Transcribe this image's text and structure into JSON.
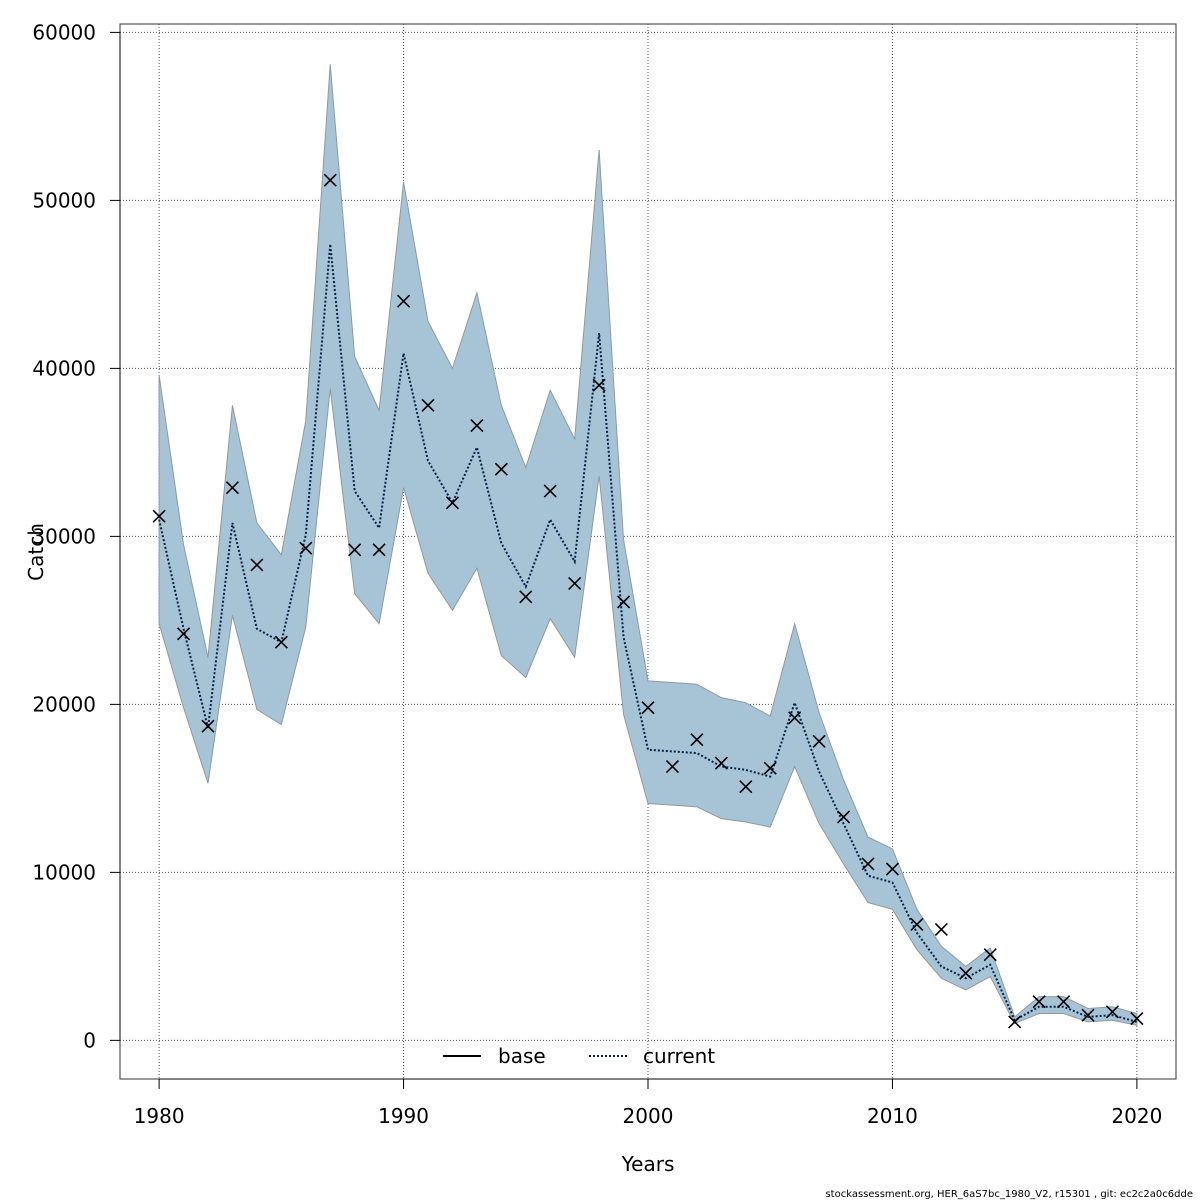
{
  "chart_data": {
    "type": "line",
    "xlabel": "Years",
    "ylabel": "Catch",
    "xlim": [
      1978.4,
      2021.6
    ],
    "ylim": [
      -2300,
      60500
    ],
    "x_ticks": [
      1980,
      1990,
      2000,
      2010,
      2020
    ],
    "y_ticks": [
      0,
      10000,
      20000,
      30000,
      40000,
      50000,
      60000
    ],
    "grid": true,
    "legend_position": "bottom",
    "colors": {
      "band_fill": "#a6c4d5",
      "band_edge": "#8e9aa2",
      "current_line": "#03234a",
      "base_line": "#000000",
      "markers": "#000000"
    },
    "years": [
      1980,
      1981,
      1982,
      1983,
      1984,
      1985,
      1986,
      1987,
      1988,
      1989,
      1990,
      1991,
      1992,
      1993,
      1994,
      1995,
      1996,
      1997,
      1998,
      1999,
      2000,
      2001,
      2002,
      2003,
      2004,
      2005,
      2006,
      2007,
      2008,
      2009,
      2010,
      2011,
      2012,
      2013,
      2014,
      2015,
      2016,
      2017,
      2018,
      2019,
      2020
    ],
    "series": [
      {
        "name": "base",
        "values": []
      },
      {
        "name": "current",
        "values": [
          31000,
          24500,
          18600,
          30800,
          24500,
          23700,
          30100,
          47400,
          32700,
          30500,
          40900,
          34500,
          32000,
          35300,
          29600,
          27000,
          31000,
          28500,
          42100,
          24000,
          17300,
          17200,
          17100,
          16300,
          16100,
          15700,
          20100,
          16000,
          12900,
          9800,
          9400,
          6400,
          4400,
          3700,
          4500,
          1200,
          2000,
          2000,
          1400,
          1500,
          1100
        ]
      }
    ],
    "ci_lower": [
      24800,
      19800,
      15300,
      25300,
      19700,
      18800,
      24600,
      38800,
      26600,
      24800,
      32900,
      27800,
      25600,
      28100,
      22900,
      21600,
      25100,
      22800,
      33600,
      19400,
      14100,
      14000,
      13900,
      13200,
      13000,
      12700,
      16300,
      12900,
      10500,
      8200,
      7800,
      5400,
      3700,
      3000,
      3800,
      1000,
      1600,
      1600,
      1100,
      1200,
      900
    ],
    "ci_upper": [
      39600,
      29500,
      22800,
      37800,
      30800,
      28900,
      36900,
      58100,
      40700,
      37500,
      51100,
      42800,
      40000,
      44500,
      37800,
      34100,
      38700,
      35800,
      53000,
      29800,
      21400,
      21300,
      21200,
      20400,
      20100,
      19300,
      24800,
      19500,
      15500,
      12100,
      11400,
      7800,
      5600,
      4400,
      5500,
      1400,
      2600,
      2600,
      1900,
      2000,
      1600
    ],
    "observed": [
      31200,
      24200,
      18700,
      32900,
      28300,
      23700,
      29300,
      51200,
      29200,
      29200,
      44000,
      37800,
      32000,
      36600,
      34000,
      26400,
      32700,
      27200,
      39000,
      26100,
      19800,
      16300,
      17900,
      16500,
      15100,
      16200,
      19200,
      17800,
      13300,
      10500,
      10200,
      6900,
      6600,
      4000,
      5100,
      1100,
      2300,
      2300,
      1500,
      1700,
      1300
    ]
  },
  "legend": {
    "items": [
      {
        "label": "base"
      },
      {
        "label": "current"
      }
    ]
  },
  "footer": {
    "text": "stockassessment.org, HER_6aS7bc_1980_V2, r15301 , git: ec2c2a0c6dde"
  }
}
